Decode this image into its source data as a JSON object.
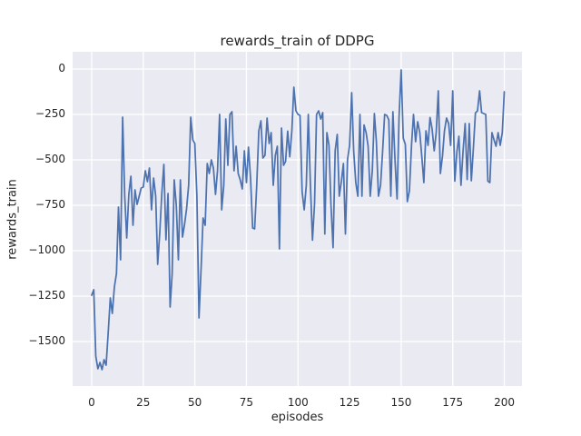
{
  "chart_data": {
    "type": "line",
    "title": "rewards_train of DDPG",
    "xlabel": "episodes",
    "ylabel": "rewards_train",
    "x_ticks": [
      0,
      25,
      50,
      75,
      100,
      125,
      150,
      175,
      200
    ],
    "y_ticks": [
      0,
      -250,
      -500,
      -750,
      -1000,
      -1250,
      -1500
    ],
    "xlim": [
      -10,
      210
    ],
    "ylim": [
      -1745,
      95
    ],
    "grid": true,
    "legend_position": "none",
    "line_color": "#4c72b0",
    "plot_background": "#eaeaf2",
    "grid_color": "#ffffff",
    "text_color": "#262626",
    "series": [
      {
        "name": "rewards_train",
        "x_start": 0,
        "x_step": 1,
        "y": [
          -1245,
          -1215,
          -1580,
          -1650,
          -1615,
          -1655,
          -1600,
          -1630,
          -1450,
          -1260,
          -1345,
          -1200,
          -1125,
          -760,
          -1050,
          -265,
          -700,
          -930,
          -690,
          -590,
          -860,
          -665,
          -745,
          -700,
          -655,
          -650,
          -560,
          -620,
          -545,
          -775,
          -600,
          -700,
          -1075,
          -900,
          -680,
          -525,
          -940,
          -685,
          -1310,
          -1130,
          -610,
          -750,
          -1050,
          -610,
          -925,
          -855,
          -770,
          -640,
          -265,
          -390,
          -410,
          -700,
          -1370,
          -1100,
          -820,
          -860,
          -520,
          -575,
          -500,
          -545,
          -690,
          -560,
          -250,
          -775,
          -640,
          -275,
          -530,
          -250,
          -235,
          -560,
          -425,
          -575,
          -610,
          -660,
          -450,
          -625,
          -430,
          -600,
          -875,
          -880,
          -640,
          -340,
          -285,
          -490,
          -475,
          -270,
          -410,
          -350,
          -640,
          -475,
          -425,
          -990,
          -325,
          -530,
          -508,
          -342,
          -483,
          -340,
          -100,
          -230,
          -250,
          -255,
          -675,
          -775,
          -640,
          -250,
          -630,
          -942,
          -740,
          -250,
          -230,
          -275,
          -240,
          -908,
          -350,
          -420,
          -750,
          -983,
          -450,
          -360,
          -700,
          -620,
          -520,
          -908,
          -500,
          -420,
          -130,
          -450,
          -625,
          -700,
          -250,
          -700,
          -308,
          -350,
          -425,
          -700,
          -560,
          -245,
          -400,
          -700,
          -640,
          -450,
          -250,
          -255,
          -280,
          -700,
          -235,
          -500,
          -715,
          -260,
          -5,
          -380,
          -415,
          -730,
          -670,
          -420,
          -250,
          -400,
          -290,
          -350,
          -480,
          -625,
          -340,
          -420,
          -267,
          -330,
          -450,
          -350,
          -120,
          -575,
          -480,
          -340,
          -270,
          -300,
          -420,
          -120,
          -617,
          -455,
          -370,
          -640,
          -450,
          -300,
          -608,
          -300,
          -615,
          -440,
          -242,
          -230,
          -120,
          -240,
          -245,
          -250,
          -617,
          -625,
          -350,
          -390,
          -425,
          -350,
          -420,
          -350,
          -125
        ]
      }
    ]
  }
}
